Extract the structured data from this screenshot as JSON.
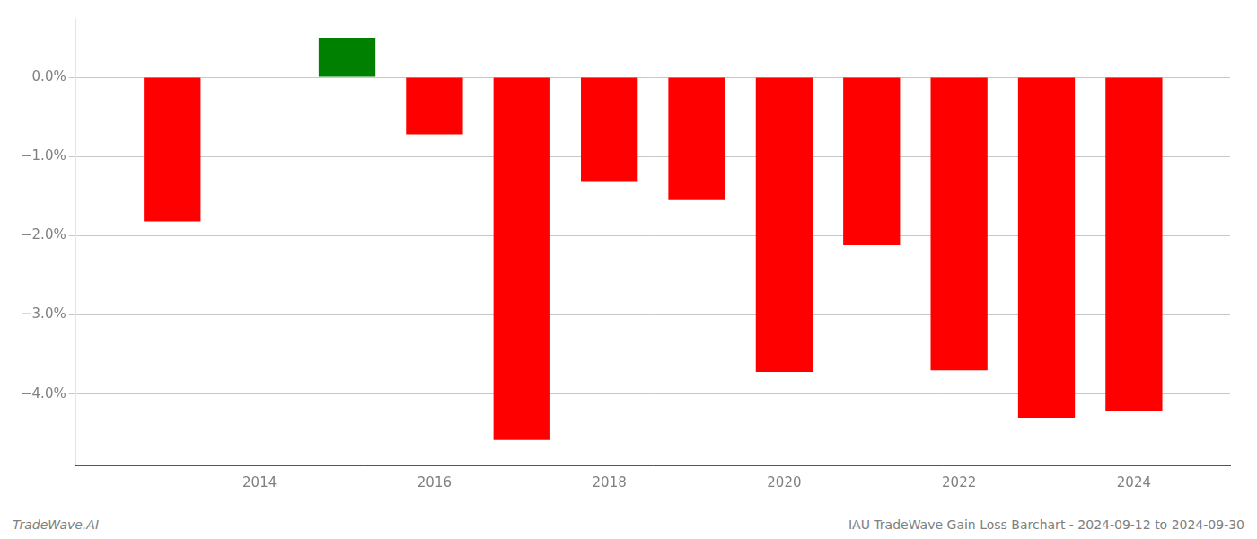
{
  "chart_data": {
    "type": "bar",
    "x": [
      2013,
      2015,
      2016,
      2017,
      2018,
      2019,
      2020,
      2021,
      2022,
      2023,
      2024
    ],
    "values": [
      -1.82,
      0.5,
      -0.72,
      -4.58,
      -1.32,
      -1.55,
      -3.72,
      -2.12,
      -3.7,
      -4.3,
      -4.22
    ],
    "colors": [
      "#ff0000",
      "#008000",
      "#ff0000",
      "#ff0000",
      "#ff0000",
      "#ff0000",
      "#ff0000",
      "#ff0000",
      "#ff0000",
      "#ff0000",
      "#ff0000"
    ],
    "xlim": [
      2011.9,
      2025.1
    ],
    "xticks": [
      2014,
      2016,
      2018,
      2020,
      2022,
      2024
    ],
    "ylim": [
      -4.9,
      0.75
    ],
    "yticks": [
      {
        "value": 0.0,
        "label": "0.0%"
      },
      {
        "value": -1.0,
        "label": "−1.0%"
      },
      {
        "value": -2.0,
        "label": "−2.0%"
      },
      {
        "value": -3.0,
        "label": "−3.0%"
      },
      {
        "value": -4.0,
        "label": "−4.0%"
      }
    ],
    "grid": "y",
    "annotations": [
      "TradeWave.AI",
      "IAU TradeWave Gain Loss Barchart - 2024-09-12 to 2024-09-30"
    ]
  }
}
